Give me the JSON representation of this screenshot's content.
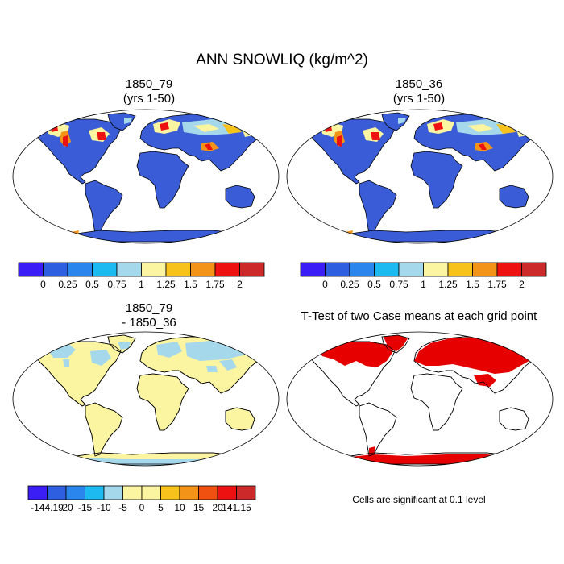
{
  "figure": {
    "title": "ANN SNOWLIQ (kg/m^2)",
    "note": "Cells are significant at 0.1 level"
  },
  "panels": [
    {
      "line1": "1850_79",
      "line2": "(yrs 1-50)"
    },
    {
      "line1": "1850_36",
      "line2": "(yrs 1-50)"
    },
    {
      "line1": "1850_79",
      "line2": "- 1850_36"
    },
    {
      "line1": "T-Test of two Case means at each grid point",
      "line2": ""
    }
  ],
  "colorbars": {
    "abs": {
      "labels": [
        "0",
        "0.25",
        "0.5",
        "0.75",
        "1",
        "1.25",
        "1.5",
        "1.75",
        "2"
      ],
      "colors": [
        "#3a1ef5",
        "#2e5fe0",
        "#2a85ec",
        "#1cbaf0",
        "#a6d8ec",
        "#fbf4a0",
        "#f7c21c",
        "#f39418",
        "#ee1111",
        "#cc2a2a"
      ]
    },
    "diff": {
      "labels": [
        "-144.19",
        "-20",
        "-15",
        "-10",
        "-5",
        "0",
        "5",
        "10",
        "15",
        "20",
        "141.15"
      ],
      "colors": [
        "#3a1ef5",
        "#2e5fe0",
        "#2a85ec",
        "#1cbaf0",
        "#a6d8ec",
        "#fbf4a0",
        "#fbf4a0",
        "#f7c21c",
        "#f39418",
        "#f05010",
        "#ee1111",
        "#cc2a2a"
      ]
    }
  },
  "colors": {
    "ocean": "#ffffff",
    "land_abs": "#3a5cd6",
    "land_diff": "#fbf4a0",
    "diff_neg": "#a6d8ec",
    "sig": "#e60000",
    "coast": "#000000"
  }
}
